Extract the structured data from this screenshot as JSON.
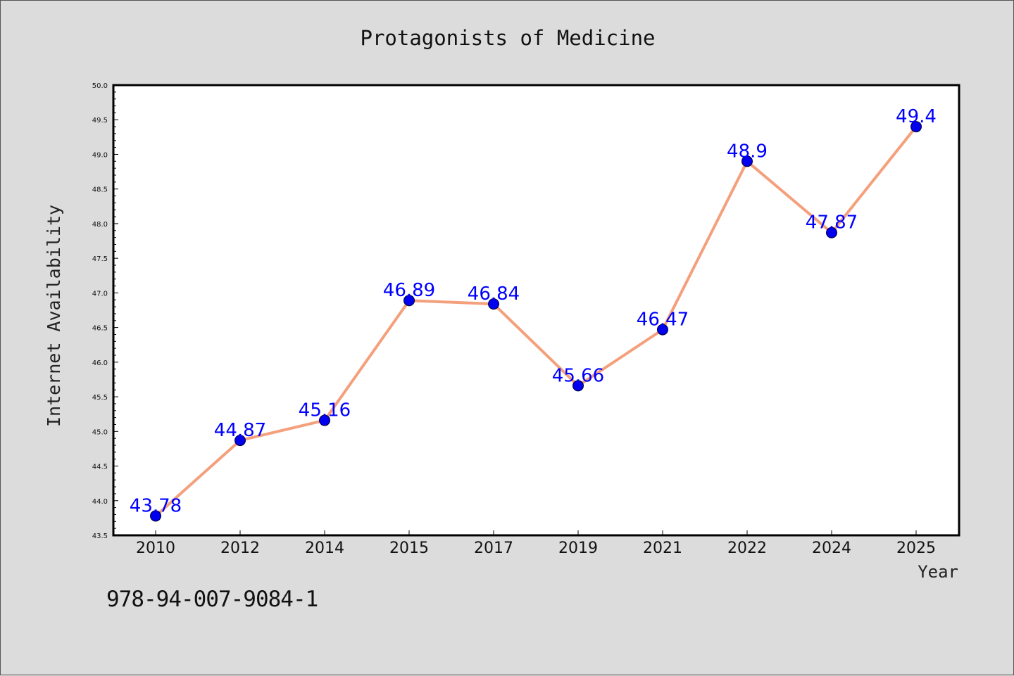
{
  "chart_data": {
    "type": "line",
    "title": "Protagonists of Medicine",
    "xlabel": "Year",
    "ylabel": "Internet Availability",
    "categories": [
      "2010",
      "2012",
      "2014",
      "2015",
      "2017",
      "2019",
      "2021",
      "2022",
      "2024",
      "2025"
    ],
    "values": [
      43.78,
      44.87,
      45.16,
      46.89,
      46.84,
      45.66,
      46.47,
      48.9,
      47.87,
      49.4
    ],
    "data_labels": [
      "43.78",
      "44.87",
      "45.16",
      "46.89",
      "46.84",
      "45.66",
      "46.47",
      "48.9",
      "47.87",
      "49.4"
    ],
    "ylim": [
      43.5,
      50.0
    ],
    "yticks": [
      43.5,
      44.0,
      44.5,
      45.0,
      45.5,
      46.0,
      46.5,
      47.0,
      47.5,
      48.0,
      48.5,
      49.0,
      49.5,
      50.0
    ],
    "ytick_labels": [
      "43.5",
      "44.0",
      "44.5",
      "45.0",
      "45.5",
      "46.0",
      "46.5",
      "47.0",
      "47.5",
      "48.0",
      "48.5",
      "49.0",
      "49.5",
      "50.0"
    ],
    "grid": false,
    "legend": "none",
    "line_color": "#f4a07c",
    "marker_color": "#0000ee",
    "label_color": "#0000ff"
  },
  "footer": {
    "isbn": "978-94-007-9084-1"
  }
}
